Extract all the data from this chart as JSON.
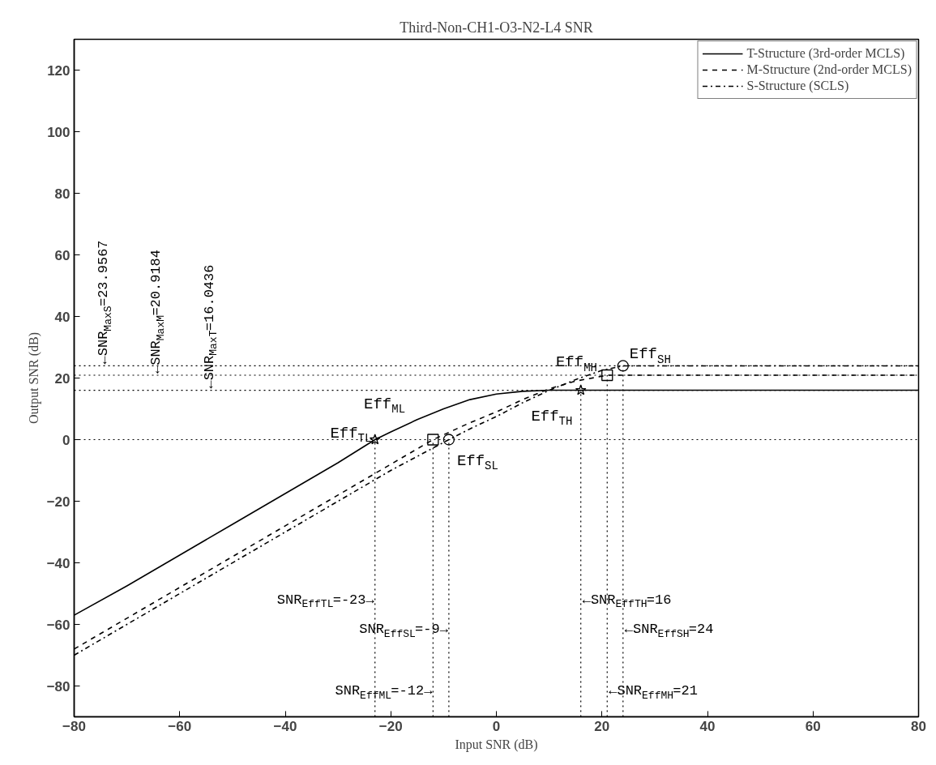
{
  "chart_data": {
    "type": "line",
    "title": "Third-Non-CH1-O3-N2-L4 SNR",
    "xlabel": "Input SNR (dB)",
    "ylabel": "Output SNR (dB)",
    "xlim": [
      -80,
      80
    ],
    "ylim": [
      -90,
      130
    ],
    "xticks": [
      -80,
      -60,
      -40,
      -20,
      0,
      20,
      40,
      60,
      80
    ],
    "yticks": [
      -80,
      -60,
      -40,
      -20,
      0,
      20,
      40,
      60,
      80,
      100,
      120
    ],
    "grid": false,
    "legend": "top right",
    "series": [
      {
        "name": "T-Structure (3rd-order MCLS)",
        "color": "#000000",
        "line_style": "solid",
        "x": [
          -80,
          -70,
          -60,
          -50,
          -40,
          -30,
          -23,
          -20,
          -15,
          -10,
          -5,
          0,
          5,
          10,
          80
        ],
        "values": [
          -57,
          -47.5,
          -37.5,
          -27.5,
          -17.5,
          -7.5,
          0,
          2.5,
          6.5,
          10,
          13,
          14.8,
          15.7,
          16.0436,
          16.0436
        ]
      },
      {
        "name": "M-Structure (2nd-order MCLS)",
        "color": "#000000",
        "line_style": "dashed",
        "x": [
          -80,
          -60,
          -40,
          -20,
          -12,
          -5,
          0,
          5,
          10,
          15,
          21,
          80
        ],
        "values": [
          -68,
          -48,
          -28,
          -8,
          0,
          5.5,
          9,
          13,
          16.5,
          19,
          20.9184,
          20.9184
        ]
      },
      {
        "name": "S-Structure (SCLS)",
        "color": "#000000",
        "line_style": "dashdot",
        "x": [
          -80,
          -60,
          -40,
          -20,
          -9,
          -5,
          0,
          5,
          10,
          15,
          20,
          24,
          80
        ],
        "values": [
          -70,
          -50,
          -30,
          -10,
          0,
          3.5,
          7.5,
          12,
          16,
          19.5,
          22.5,
          23.9567,
          23.9567
        ]
      },
      {
        "type": "scatter",
        "marker": "star",
        "color": "#000000",
        "x": [
          -23,
          16
        ],
        "values": [
          0,
          16.0436
        ]
      },
      {
        "type": "scatter",
        "marker": "square",
        "color": "#000000",
        "x": [
          -12,
          21
        ],
        "values": [
          0,
          20.9184
        ]
      },
      {
        "type": "scatter",
        "marker": "circle",
        "color": "#000000",
        "x": [
          -9,
          24
        ],
        "values": [
          0,
          23.9567
        ]
      }
    ],
    "ref_lines": [
      {
        "axis": "y",
        "value": 23.9567,
        "label": "←SNR$_{MaxS}$=23.9567",
        "line_style": "dotted"
      },
      {
        "axis": "y",
        "value": 20.9184,
        "label": "←SNR$_{MaxM}$=20.9184",
        "line_style": "dotted"
      },
      {
        "axis": "y",
        "value": 16.0436,
        "label": "←SNR$_{MaxT}$=16.0436",
        "line_style": "dotted"
      },
      {
        "axis": "y",
        "value": 0,
        "label": null,
        "line_style": "dotted"
      },
      {
        "axis": "x",
        "value": -23,
        "label": "SNR$_{EffTL}$=-23→",
        "line_style": "dotted"
      },
      {
        "axis": "x",
        "value": -9,
        "label": "SNR$_{EffSL}$=-9→",
        "line_style": "dotted"
      },
      {
        "axis": "x",
        "value": -12,
        "label": "SNR$_{EffML}$=-12→",
        "line_style": "dotted"
      },
      {
        "axis": "x",
        "value": 16,
        "label": "←SNR$_{EffTH}$=16",
        "line_style": "dotted"
      },
      {
        "axis": "x",
        "value": 24,
        "label": "←SNR$_{EffSH}$=24",
        "line_style": "dotted"
      },
      {
        "axis": "x",
        "value": 21,
        "label": "←SNR$_{EffMH}$=21",
        "line_style": "dotted"
      }
    ],
    "annotations": [
      {
        "text": "Eff$_{TL}$",
        "x": -23,
        "y": 0
      },
      {
        "text": "Eff$_{ML}$",
        "x": -12,
        "y": 0
      },
      {
        "text": "Eff$_{SL}$",
        "x": -9,
        "y": 0
      },
      {
        "text": "Eff$_{TH}$",
        "x": 16,
        "y": 16.0436
      },
      {
        "text": "Eff$_{MH}$",
        "x": 21,
        "y": 20.9184
      },
      {
        "text": "Eff$_{SH}$",
        "x": 24,
        "y": 23.9567
      }
    ]
  }
}
